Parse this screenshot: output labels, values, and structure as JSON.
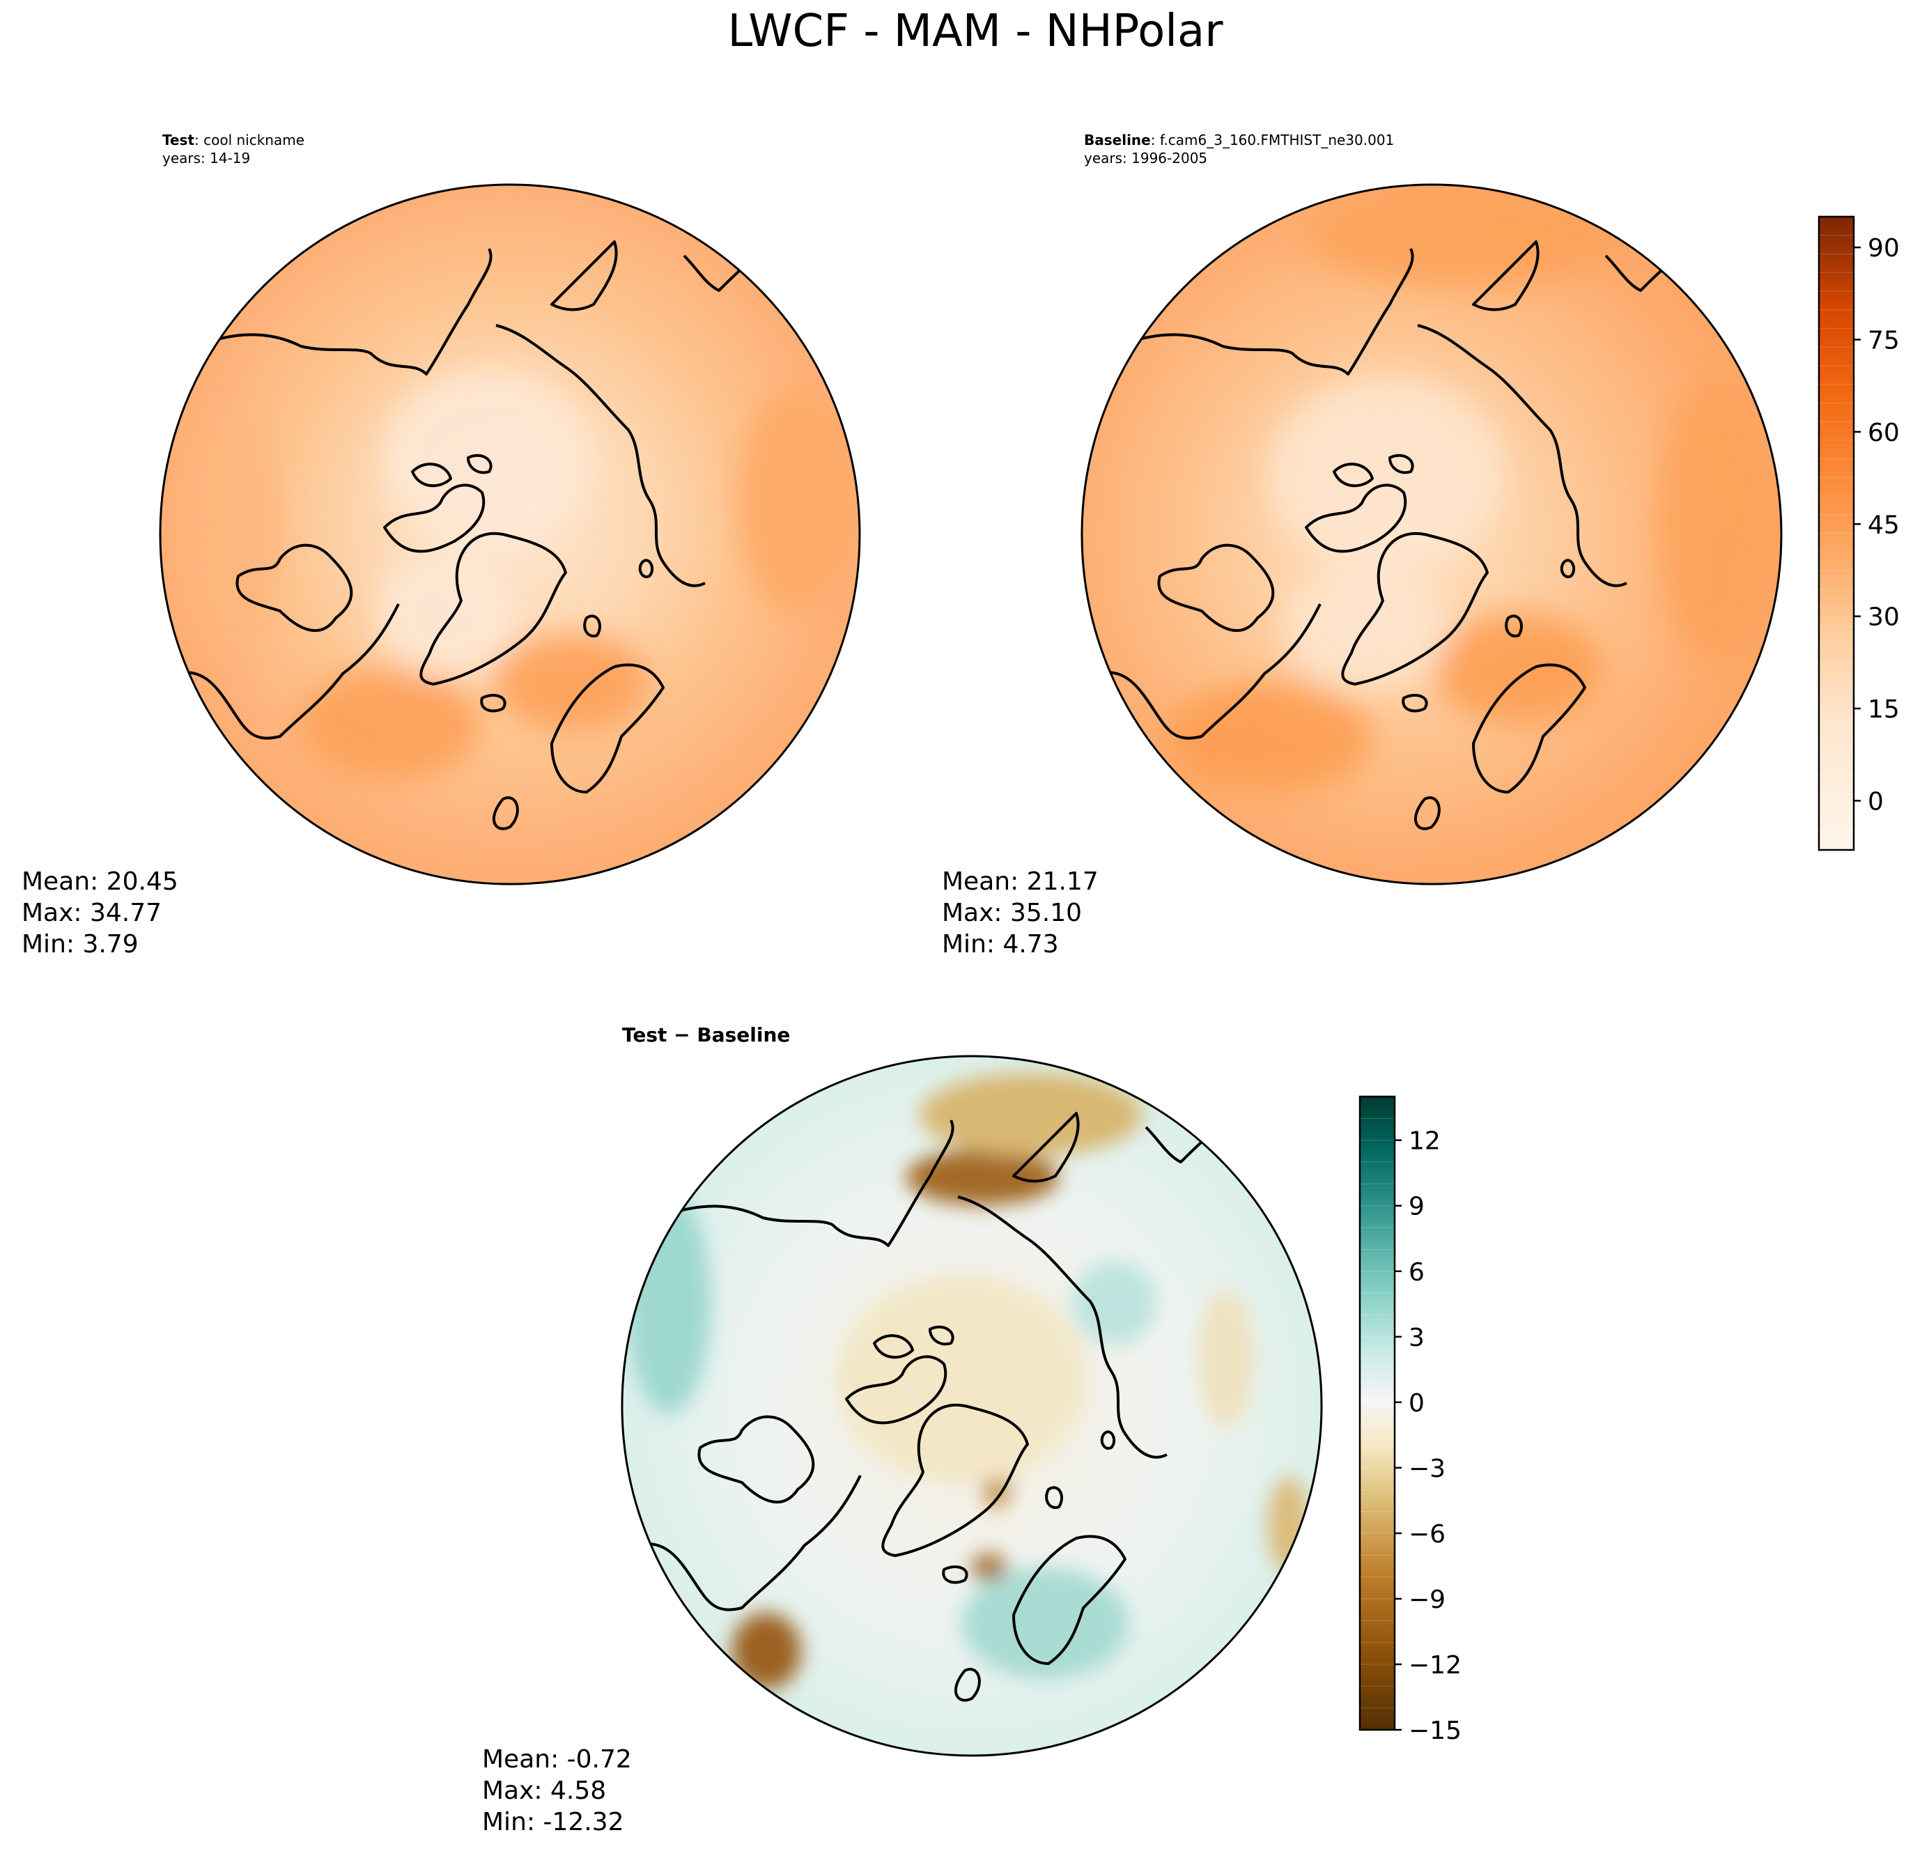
{
  "title": "LWCF - MAM - NHPolar",
  "colors": {
    "abs_colormap": [
      "#fff5eb",
      "#fee6ce",
      "#fdd0a2",
      "#fdae6b",
      "#fd8d3c",
      "#f16913",
      "#d94801",
      "#a63603",
      "#7f2704"
    ],
    "diff_colormap": [
      "#543005",
      "#8c510a",
      "#bf812d",
      "#dfc27d",
      "#f6e8c3",
      "#f5f5f5",
      "#c7eae5",
      "#80cdc1",
      "#35978f",
      "#01665e",
      "#003c30"
    ],
    "coastline": "#000000"
  },
  "chart_data": [
    {
      "type": "heatmap",
      "panel": "test",
      "title_bold": "Test",
      "title_rest": ": cool nickname",
      "subtitle": "years: 14-19",
      "projection": "north polar stereographic",
      "stats": {
        "mean": "Mean: 20.45",
        "max": "Max: 34.77",
        "min": "Min:  3.79"
      },
      "field_range": [
        3.79,
        34.77
      ],
      "field_mean": 20.45
    },
    {
      "type": "heatmap",
      "panel": "baseline",
      "title_bold": "Baseline",
      "title_rest": ": f.cam6_3_160.FMTHIST_ne30.001",
      "subtitle": "years: 1996-2005",
      "projection": "north polar stereographic",
      "stats": {
        "mean": "Mean: 21.17",
        "max": "Max: 35.10",
        "min": "Min:  4.73"
      },
      "field_range": [
        4.73,
        35.1
      ],
      "field_mean": 21.17,
      "colorbar": {
        "range": [
          -8,
          95
        ],
        "ticks": [
          0,
          15,
          30,
          45,
          60,
          75,
          90
        ],
        "tick_labels": [
          "0",
          "15",
          "30",
          "45",
          "60",
          "75",
          "90"
        ],
        "levels": 34
      }
    },
    {
      "type": "heatmap",
      "panel": "difference",
      "title_bold": "Test − Baseline",
      "projection": "north polar stereographic",
      "stats": {
        "mean": "Mean: -0.72",
        "max": "Max:  4.58",
        "min": "Min: -12.32"
      },
      "field_range": [
        -12.32,
        4.58
      ],
      "field_mean": -0.72,
      "colorbar": {
        "range": [
          -15,
          14
        ],
        "ticks": [
          -15,
          -12,
          -9,
          -6,
          -3,
          0,
          3,
          6,
          9,
          12
        ],
        "tick_labels": [
          "−15",
          "−12",
          "−9",
          "−6",
          "−3",
          "0",
          "3",
          "6",
          "9",
          "12"
        ],
        "levels": 29
      }
    }
  ]
}
